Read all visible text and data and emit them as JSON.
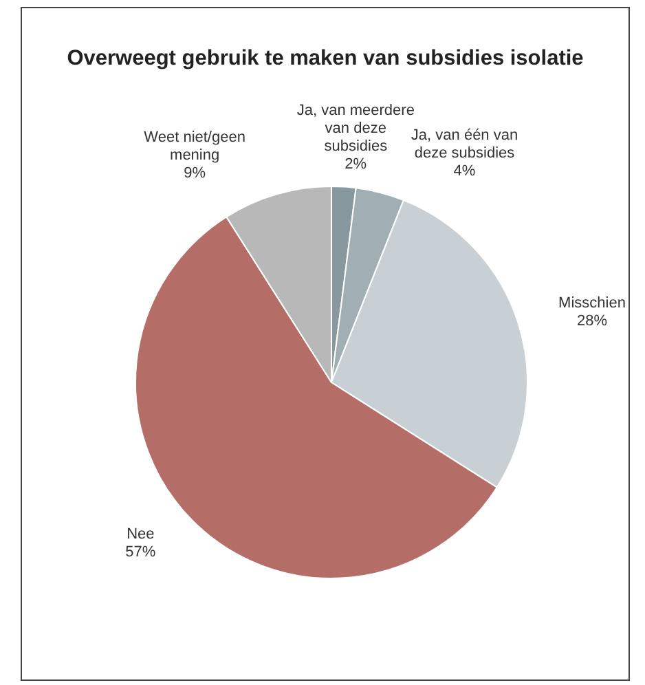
{
  "chart_data": {
    "type": "pie",
    "title": "Overweegt gebruik te maken van subsidies isolatie",
    "categories": [
      "Ja, van meerdere van deze subsidies",
      "Ja, van één van deze subsidies",
      "Misschien",
      "Nee",
      "Weet niet/geen mening"
    ],
    "values": [
      2,
      4,
      28,
      57,
      9
    ],
    "colors": [
      "#87999f",
      "#a1afb4",
      "#c8d0d5",
      "#b46e67",
      "#b8b8b8"
    ],
    "value_labels": [
      "2%",
      "4%",
      "28%",
      "57%",
      "9%"
    ],
    "legend": false
  }
}
